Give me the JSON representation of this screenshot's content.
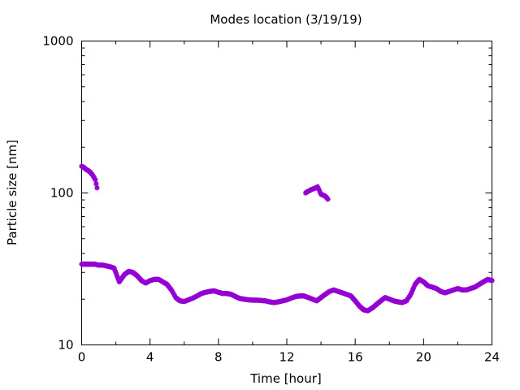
{
  "chart_data": {
    "type": "scatter",
    "title": "Modes location (3/19/19)",
    "xlabel": "Time [hour]",
    "ylabel": "Particle size [nm]",
    "xlim": [
      0,
      24
    ],
    "ylim": [
      10,
      1000
    ],
    "yscale": "log",
    "grid": false,
    "legend": "none",
    "marker_color": "#9400d3",
    "x_ticks": [
      0,
      4,
      8,
      12,
      16,
      20,
      24
    ],
    "x_tick_labels": [
      "0",
      "4",
      "8",
      "12",
      "16",
      "20",
      "24"
    ],
    "x_minor_ticks": [
      2,
      6,
      10,
      14,
      18,
      22
    ],
    "y_ticks": [
      10,
      100,
      1000
    ],
    "y_tick_labels": [
      "10",
      "100",
      "1000"
    ],
    "y_minor_ticks": [
      20,
      30,
      40,
      50,
      60,
      70,
      80,
      90,
      200,
      300,
      400,
      500,
      600,
      700,
      800,
      900
    ],
    "series": [
      {
        "x": [
          0.0,
          0.25,
          0.5,
          0.75,
          1.0,
          1.25,
          1.5,
          1.75,
          1.9,
          2.2,
          2.5,
          2.75,
          3.0,
          3.25,
          3.5,
          3.75,
          4.0,
          4.25,
          4.5,
          4.75,
          5.0,
          5.25,
          5.5,
          5.75,
          6.0,
          6.25,
          6.5,
          6.75,
          7.0,
          7.25,
          7.5,
          7.75,
          8.0,
          8.25,
          8.5,
          8.75,
          9.0,
          9.25,
          9.5,
          9.75,
          10.0,
          10.25,
          10.5,
          10.75,
          11.0,
          11.25,
          11.5,
          11.75,
          12.0,
          12.25,
          12.5,
          12.75,
          13.0,
          13.25,
          13.5,
          13.75,
          14.0,
          14.25,
          14.5,
          14.75,
          15.0,
          15.25,
          15.5,
          15.75,
          16.0,
          16.25,
          16.5,
          16.75,
          17.0,
          17.25,
          17.5,
          17.75,
          18.0,
          18.25,
          18.5,
          18.75,
          19.0,
          19.25,
          19.5,
          19.75,
          20.0,
          20.25,
          20.5,
          20.75,
          21.0,
          21.25,
          21.5,
          21.75,
          22.0,
          22.25,
          22.5,
          22.75,
          23.0,
          23.25,
          23.5,
          23.75,
          24.0
        ],
        "y": [
          34,
          34,
          34,
          34,
          33.5,
          33.5,
          33,
          32.5,
          32,
          26,
          29,
          30.5,
          30,
          28.5,
          26.5,
          25.5,
          26.5,
          27,
          27,
          26,
          25,
          23,
          20.5,
          19.5,
          19.3,
          19.8,
          20.3,
          21,
          21.8,
          22.2,
          22.5,
          22.7,
          22.2,
          21.8,
          21.8,
          21.5,
          20.8,
          20.2,
          20,
          19.8,
          19.7,
          19.7,
          19.6,
          19.5,
          19.2,
          19,
          19.2,
          19.5,
          19.8,
          20.3,
          20.8,
          21,
          21,
          20.5,
          20,
          19.5,
          20.5,
          21.5,
          22.5,
          23,
          22.5,
          22,
          21.5,
          21,
          19.5,
          18,
          17,
          16.8,
          17.5,
          18.5,
          19.5,
          20.5,
          20,
          19.5,
          19.2,
          19,
          19.5,
          21.5,
          25,
          27,
          26,
          24.5,
          24,
          23.5,
          22.5,
          22,
          22.5,
          23,
          23.5,
          23,
          23,
          23.5,
          24,
          25,
          26,
          27,
          26.5
        ]
      },
      {
        "x": [
          0.0,
          0.1,
          0.2,
          0.3,
          0.4,
          0.5,
          0.6,
          0.7,
          0.8,
          0.9,
          13.1,
          13.2,
          13.3,
          13.4,
          13.5,
          13.6,
          13.7,
          13.8,
          14.0,
          14.1,
          14.2,
          14.3,
          14.4
        ],
        "y": [
          150,
          148,
          145,
          142,
          140,
          137,
          133,
          128,
          122,
          108,
          100,
          102,
          103,
          105,
          106,
          107,
          108,
          110,
          98,
          97,
          96,
          94,
          91
        ]
      }
    ]
  }
}
